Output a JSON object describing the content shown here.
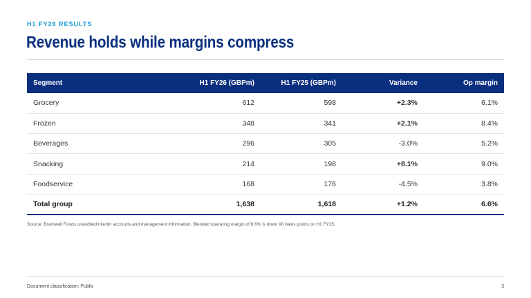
{
  "header": {
    "eyebrow": "H1 FY26 RESULTS",
    "title": "Revenue holds while margins compress"
  },
  "table": {
    "columns": [
      "Segment",
      "H1 FY26 (GBPm)",
      "H1 FY25 (GBPm)",
      "Variance",
      "Op margin"
    ],
    "rows": [
      {
        "segment": "Grocery",
        "fy26": "612",
        "fy25": "598",
        "variance": "+2.3%",
        "op_margin": "6.1%"
      },
      {
        "segment": "Frozen",
        "fy26": "348",
        "fy25": "341",
        "variance": "+2.1%",
        "op_margin": "8.4%"
      },
      {
        "segment": "Beverages",
        "fy26": "296",
        "fy25": "305",
        "variance": "-3.0%",
        "op_margin": "5.2%"
      },
      {
        "segment": "Snacking",
        "fy26": "214",
        "fy25": "198",
        "variance": "+8.1%",
        "op_margin": "9.0%"
      },
      {
        "segment": "Foodservice",
        "fy26": "168",
        "fy25": "176",
        "variance": "-4.5%",
        "op_margin": "3.8%"
      },
      {
        "segment": "Total group",
        "fy26": "1,638",
        "fy25": "1,618",
        "variance": "+1.2%",
        "op_margin": "6.6%"
      }
    ]
  },
  "source_note": "Source: Bramwell Foods unaudited interim accounts and management information. Blended operating margin of 6.6% is down 90 basis points on H1 FY25.",
  "footer": {
    "classification": "Document classification: Public",
    "page_number": "3"
  },
  "colors": {
    "brand_navy": "#0b2f7f",
    "eyebrow_blue": "#1a9bd7",
    "positive_teal": "#12a39a"
  }
}
